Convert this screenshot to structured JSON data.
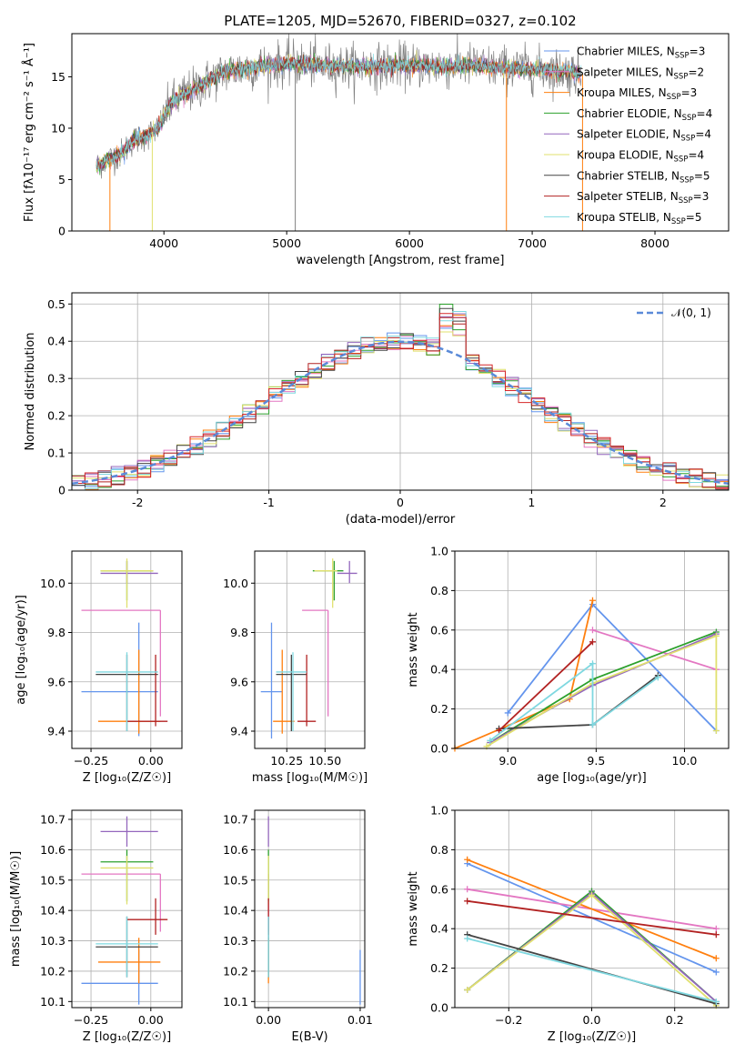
{
  "title": "PLATE=1205, MJD=52670, FIBERID=0327, z=0.102",
  "chart_data": [
    {
      "id": "spectrum",
      "type": "line",
      "xlabel": "wavelength [Angstrom, rest frame]",
      "ylabel": "Flux [fλ10⁻¹⁷ erg cm⁻² s⁻¹ Å⁻¹]",
      "xlim": [
        3250,
        8600
      ],
      "ylim": [
        0,
        19.2
      ],
      "x_ticks": [
        4000,
        5000,
        6000,
        7000,
        8000
      ],
      "y_ticks": [
        0,
        5,
        10,
        15
      ],
      "grid": false,
      "legend_position": "right",
      "legend": [
        {
          "label": "Chabrier MILES, N",
          "sub": "SSP",
          "tail": "=3",
          "color": "#6495ed"
        },
        {
          "label": "Salpeter MILES, N",
          "sub": "SSP",
          "tail": "=2",
          "color": "#e377c2"
        },
        {
          "label": "Kroupa MILES, N",
          "sub": "SSP",
          "tail": "=3",
          "color": "#ff7f0e"
        },
        {
          "label": "Chabrier ELODIE, N",
          "sub": "SSP",
          "tail": "=4",
          "color": "#2ca02c"
        },
        {
          "label": "Salpeter ELODIE, N",
          "sub": "SSP",
          "tail": "=4",
          "color": "#9467bd"
        },
        {
          "label": "Kroupa ELODIE, N",
          "sub": "SSP",
          "tail": "=4",
          "color": "#e0e06e"
        },
        {
          "label": "Chabrier STELIB, N",
          "sub": "SSP",
          "tail": "=5",
          "color": "#444444"
        },
        {
          "label": "Salpeter STELIB, N",
          "sub": "SSP",
          "tail": "=3",
          "color": "#b22222"
        },
        {
          "label": "Kroupa STELIB, N",
          "sub": "SSP",
          "tail": "=5",
          "color": "#7fd8e0"
        }
      ],
      "continuum": {
        "x": [
          3450,
          3550,
          3650,
          3750,
          3850,
          3950,
          4050,
          4150,
          4250,
          4350,
          4500,
          4700,
          4900,
          5100,
          5300,
          5500,
          5700,
          5900,
          6100,
          6300,
          6500,
          6700,
          6900,
          7100,
          7300,
          7400
        ],
        "y": [
          6.3,
          7.0,
          7.5,
          8.8,
          9.2,
          10.0,
          12.3,
          13.2,
          13.8,
          14.5,
          15.5,
          15.9,
          16.2,
          16.3,
          16.1,
          16.0,
          16.0,
          16.1,
          16.1,
          16.0,
          16.1,
          15.9,
          15.8,
          15.7,
          15.5,
          15.3
        ]
      },
      "data_xrange": [
        3450,
        7400
      ]
    },
    {
      "id": "residuals",
      "type": "histogram",
      "xlabel": "(data-model)/error",
      "ylabel": "Normed distribution",
      "xlim": [
        -2.5,
        2.5
      ],
      "ylim": [
        0,
        0.53
      ],
      "x_ticks": [
        -2,
        -1,
        0,
        1,
        2
      ],
      "y_ticks": [
        0.0,
        0.1,
        0.2,
        0.3,
        0.4,
        0.5
      ],
      "grid": true,
      "legend": [
        {
          "label": "𝒩(0, 1)",
          "color": "#5a8ad8",
          "style": "dashed"
        }
      ],
      "legend_position": "top-right",
      "bin_width": 0.1,
      "reference_curve": "normal(0,1)"
    },
    {
      "id": "age_vs_Z",
      "type": "errorbar",
      "xlabel": "Z [log₁₀(Z/Z☉)]",
      "ylabel": "age  [log₁₀(age/yr)]",
      "xlim": [
        -0.33,
        0.13
      ],
      "ylim": [
        9.33,
        10.13
      ],
      "x_ticks": [
        -0.25,
        0.0
      ],
      "x_tick_labels": [
        "−0.25",
        "0.00"
      ],
      "y_ticks": [
        9.4,
        9.6,
        9.8,
        10.0
      ],
      "y_tick_labels": [
        "9.4",
        "9.6",
        "9.8",
        "10.0"
      ],
      "grid": true
    },
    {
      "id": "age_vs_mass",
      "type": "errorbar",
      "xlabel": "mass [log₁₀(M/M☉)]",
      "xlim": [
        10.04,
        10.76
      ],
      "ylim": [
        9.33,
        10.13
      ],
      "x_ticks": [
        10.25,
        10.5
      ],
      "x_tick_labels": [
        "10.25",
        "10.50"
      ],
      "y_ticks": [
        9.4,
        9.6,
        9.8,
        10.0
      ],
      "y_tick_labels": [
        "9.4",
        "9.6",
        "9.8",
        "10.0"
      ],
      "grid": true
    },
    {
      "id": "weight_vs_age",
      "type": "line",
      "xlabel": "age  [log₁₀(age/yr)]",
      "ylabel": "mass weight",
      "xlim": [
        8.7,
        10.25
      ],
      "ylim": [
        0,
        1
      ],
      "x_ticks": [
        9.0,
        9.5,
        10.0
      ],
      "x_tick_labels": [
        "9.0",
        "9.5",
        "10.0"
      ],
      "y_ticks": [
        0,
        0.2,
        0.4,
        0.6,
        0.8,
        1.0
      ],
      "y_tick_labels": [
        "0.0",
        "0.2",
        "0.4",
        "0.6",
        "0.8",
        "1.0"
      ],
      "grid": true,
      "series": [
        {
          "color": "#6495ed",
          "x": [
            9.0,
            9.48,
            10.18
          ],
          "y": [
            0.18,
            0.73,
            0.09
          ]
        },
        {
          "color": "#e377c2",
          "x": [
            9.48,
            10.18
          ],
          "y": [
            0.6,
            0.4
          ]
        },
        {
          "color": "#ff7f0e",
          "x": [
            8.7,
            9.35,
            9.48
          ],
          "y": [
            0.0,
            0.25,
            0.75
          ]
        },
        {
          "color": "#2ca02c",
          "x": [
            8.9,
            9.48,
            10.18
          ],
          "y": [
            0.03,
            0.35,
            0.59
          ]
        },
        {
          "color": "#9467bd",
          "x": [
            8.9,
            9.48,
            10.18
          ],
          "y": [
            0.03,
            0.32,
            0.58
          ]
        },
        {
          "color": "#e0e06e",
          "x": [
            8.88,
            9.48,
            10.18,
            10.18
          ],
          "y": [
            0.01,
            0.33,
            0.57,
            0.09
          ]
        },
        {
          "color": "#444444",
          "x": [
            8.95,
            9.48,
            9.85
          ],
          "y": [
            0.1,
            0.12,
            0.37
          ]
        },
        {
          "color": "#b22222",
          "x": [
            8.95,
            9.48
          ],
          "y": [
            0.09,
            0.54
          ]
        },
        {
          "color": "#7fd8e0",
          "x": [
            8.9,
            9.48,
            9.48,
            9.85
          ],
          "y": [
            0.04,
            0.43,
            0.12,
            0.36
          ]
        }
      ]
    },
    {
      "id": "mass_vs_Z",
      "type": "errorbar",
      "xlabel": "Z [log₁₀(Z/Z☉)]",
      "ylabel": "mass [log₁₀(M/M☉)]",
      "xlim": [
        -0.33,
        0.13
      ],
      "ylim": [
        10.08,
        10.73
      ],
      "x_ticks": [
        -0.25,
        0.0
      ],
      "x_tick_labels": [
        "−0.25",
        "0.00"
      ],
      "y_ticks": [
        10.1,
        10.2,
        10.3,
        10.4,
        10.5,
        10.6,
        10.7
      ],
      "y_tick_labels": [
        "10.1",
        "10.2",
        "10.3",
        "10.4",
        "10.5",
        "10.6",
        "10.7"
      ],
      "grid": true
    },
    {
      "id": "mass_vs_EBV",
      "type": "errorbar",
      "xlabel": "E(B-V)",
      "xlim": [
        -0.0015,
        0.0105
      ],
      "ylim": [
        10.08,
        10.73
      ],
      "x_ticks": [
        0.0,
        0.01
      ],
      "x_tick_labels": [
        "0.00",
        "0.01"
      ],
      "y_ticks": [
        10.1,
        10.2,
        10.3,
        10.4,
        10.5,
        10.6,
        10.7
      ],
      "y_tick_labels": [
        "10.1",
        "10.2",
        "10.3",
        "10.4",
        "10.5",
        "10.6",
        "10.7"
      ],
      "grid": true
    },
    {
      "id": "weight_vs_Z",
      "type": "line",
      "xlabel": "Z [log₁₀(Z/Z☉)]",
      "ylabel": "mass weight",
      "xlim": [
        -0.33,
        0.33
      ],
      "ylim": [
        0,
        1
      ],
      "x_ticks": [
        -0.2,
        0.0,
        0.2
      ],
      "x_tick_labels": [
        "−0.2",
        "0.0",
        "0.2"
      ],
      "y_ticks": [
        0,
        0.2,
        0.4,
        0.6,
        0.8,
        1.0
      ],
      "y_tick_labels": [
        "0.0",
        "0.2",
        "0.4",
        "0.6",
        "0.8",
        "1.0"
      ],
      "grid": true,
      "series": [
        {
          "color": "#6495ed",
          "x": [
            -0.3,
            0.3
          ],
          "y": [
            0.73,
            0.18
          ]
        },
        {
          "color": "#e377c2",
          "x": [
            -0.3,
            0.3
          ],
          "y": [
            0.6,
            0.4
          ]
        },
        {
          "color": "#ff7f0e",
          "x": [
            -0.3,
            0.3
          ],
          "y": [
            0.75,
            0.25
          ]
        },
        {
          "color": "#2ca02c",
          "x": [
            -0.3,
            0.0,
            0.3
          ],
          "y": [
            0.09,
            0.59,
            0.03
          ]
        },
        {
          "color": "#9467bd",
          "x": [
            -0.3,
            0.0,
            0.3
          ],
          "y": [
            0.09,
            0.58,
            0.03
          ]
        },
        {
          "color": "#e0e06e",
          "x": [
            -0.3,
            0.0,
            0.3
          ],
          "y": [
            0.09,
            0.57,
            0.01
          ]
        },
        {
          "color": "#444444",
          "x": [
            -0.3,
            0.3
          ],
          "y": [
            0.37,
            0.02
          ]
        },
        {
          "color": "#b22222",
          "x": [
            -0.3,
            0.3
          ],
          "y": [
            0.54,
            0.37
          ]
        },
        {
          "color": "#7fd8e0",
          "x": [
            -0.3,
            0.3
          ],
          "y": [
            0.35,
            0.03
          ]
        }
      ]
    }
  ],
  "errorbars": {
    "note": "per-model best fit parameters with uncertainties",
    "models": [
      {
        "color": "#6495ed",
        "Z": -0.05,
        "Zerr": [
          -0.29,
          -0.05,
          0.03
        ],
        "age": 9.56,
        "age_rng": [
          9.38,
          9.84
        ],
        "mass": 10.16,
        "mass_rng": [
          10.09,
          10.27
        ],
        "ebv": 0.01
      },
      {
        "color": "#e377c2",
        "Z": 0.04,
        "Zerr": [
          -0.29,
          0.04,
          0.04
        ],
        "age": 9.89,
        "age_rng": [
          9.46,
          9.89
        ],
        "mass": 10.52,
        "mass_rng": [
          10.33,
          10.52
        ],
        "ebv": 0.0
      },
      {
        "color": "#ff7f0e",
        "Z": -0.05,
        "Zerr": [
          -0.22,
          -0.05,
          0.04
        ],
        "age": 9.44,
        "age_rng": [
          9.39,
          9.73
        ],
        "mass": 10.23,
        "mass_rng": [
          10.16,
          10.31
        ],
        "ebv": 0.0
      },
      {
        "color": "#2ca02c",
        "Z": -0.1,
        "Zerr": [
          -0.21,
          -0.1,
          0.01
        ],
        "age": 10.05,
        "age_rng": [
          9.93,
          10.09
        ],
        "mass": 10.56,
        "mass_rng": [
          10.43,
          10.6
        ],
        "ebv": 0.0
      },
      {
        "color": "#9467bd",
        "Z": -0.1,
        "Zerr": [
          -0.21,
          -0.1,
          0.03
        ],
        "age": 10.04,
        "age_rng": [
          10.0,
          10.09
        ],
        "mass": 10.66,
        "mass_rng": [
          10.61,
          10.71
        ],
        "ebv": 0.0
      },
      {
        "color": "#e0e06e",
        "Z": -0.1,
        "Zerr": [
          -0.21,
          -0.1,
          0.01
        ],
        "age": 10.05,
        "age_rng": [
          9.9,
          10.1
        ],
        "mass": 10.54,
        "mass_rng": [
          10.42,
          10.58
        ],
        "ebv": 0.0
      },
      {
        "color": "#444444",
        "Z": -0.1,
        "Zerr": [
          -0.23,
          -0.1,
          0.03
        ],
        "age": 9.63,
        "age_rng": [
          9.4,
          9.71
        ],
        "mass": 10.28,
        "mass_rng": [
          10.18,
          10.38
        ],
        "ebv": 0.0
      },
      {
        "color": "#b22222",
        "Z": 0.02,
        "Zerr": [
          -0.1,
          0.02,
          0.07
        ],
        "age": 9.44,
        "age_rng": [
          9.42,
          9.71
        ],
        "mass": 10.37,
        "mass_rng": [
          10.32,
          10.44
        ],
        "ebv": 0.0
      },
      {
        "color": "#7fd8e0",
        "Z": -0.1,
        "Zerr": [
          -0.23,
          -0.1,
          0.03
        ],
        "age": 9.64,
        "age_rng": [
          9.4,
          9.72
        ],
        "mass": 10.29,
        "mass_rng": [
          10.18,
          10.38
        ],
        "ebv": 0.0
      }
    ],
    "mass_axis_age": [
      {
        "color": "#6495ed",
        "m": [
          10.08,
          10.15,
          10.22
        ],
        "age": [
          9.37,
          9.56,
          9.84
        ]
      },
      {
        "color": "#e377c2",
        "m": [
          10.35,
          10.52,
          10.52
        ],
        "age": [
          9.46,
          9.89,
          9.89
        ]
      },
      {
        "color": "#ff7f0e",
        "m": [
          10.16,
          10.22,
          10.3
        ],
        "age": [
          9.39,
          9.44,
          9.73
        ]
      },
      {
        "color": "#2ca02c",
        "m": [
          10.42,
          10.56,
          10.62
        ],
        "age": [
          9.93,
          10.05,
          10.09
        ]
      },
      {
        "color": "#9467bd",
        "m": [
          10.58,
          10.66,
          10.71
        ],
        "age": [
          10.0,
          10.04,
          10.09
        ]
      },
      {
        "color": "#e0e06e",
        "m": [
          10.43,
          10.55,
          10.58
        ],
        "age": [
          9.9,
          10.05,
          10.1
        ]
      },
      {
        "color": "#444444",
        "m": [
          10.18,
          10.28,
          10.38
        ],
        "age": [
          9.4,
          9.63,
          9.71
        ]
      },
      {
        "color": "#b22222",
        "m": [
          10.32,
          10.38,
          10.44
        ],
        "age": [
          9.42,
          9.44,
          9.71
        ]
      },
      {
        "color": "#7fd8e0",
        "m": [
          10.18,
          10.29,
          10.38
        ],
        "age": [
          9.4,
          9.64,
          9.72
        ]
      }
    ]
  }
}
